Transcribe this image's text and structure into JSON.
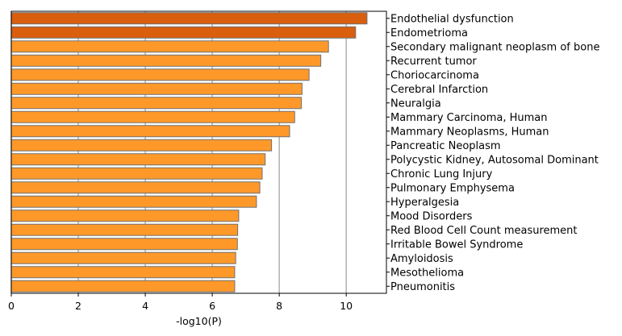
{
  "chart_data": {
    "type": "bar",
    "orientation": "horizontal",
    "title": "",
    "xlabel": "-log10(P)",
    "ylabel": "",
    "xlim": [
      0,
      11.2
    ],
    "xticks": [
      0,
      2,
      4,
      6,
      8,
      10
    ],
    "grid": "vertical",
    "categories": [
      "Endothelial dysfunction",
      "Endometrioma",
      "Secondary malignant neoplasm of bone",
      "Recurrent tumor",
      "Choriocarcinoma",
      "Cerebral Infarction",
      "Neuralgia",
      "Mammary Carcinoma, Human",
      "Mammary Neoplasms, Human",
      "Pancreatic Neoplasm",
      "Polycystic Kidney, Autosomal Dominant",
      "Chronic Lung Injury",
      "Pulmonary Emphysema",
      "Hyperalgesia",
      "Mood Disorders",
      "Red Blood Cell Count measurement",
      "Irritable Bowel Syndrome",
      "Amyloidosis",
      "Mesothelioma",
      "Pneumonitis"
    ],
    "values": [
      10.62,
      10.28,
      9.47,
      9.24,
      8.89,
      8.68,
      8.66,
      8.46,
      8.31,
      7.77,
      7.58,
      7.49,
      7.42,
      7.32,
      6.79,
      6.76,
      6.75,
      6.7,
      6.67,
      6.67
    ],
    "colors": [
      "#d95f0e",
      "#d95f0e",
      "#fe9929",
      "#fe9929",
      "#fe9929",
      "#fe9929",
      "#fe9929",
      "#fe9929",
      "#fe9929",
      "#fe9929",
      "#fe9929",
      "#fe9929",
      "#fe9929",
      "#fe9929",
      "#fe9929",
      "#fe9929",
      "#fe9929",
      "#fe9929",
      "#fe9929",
      "#fe9929"
    ],
    "bar_edge_color": "#707070",
    "grid_color": "#b0b0b0"
  }
}
